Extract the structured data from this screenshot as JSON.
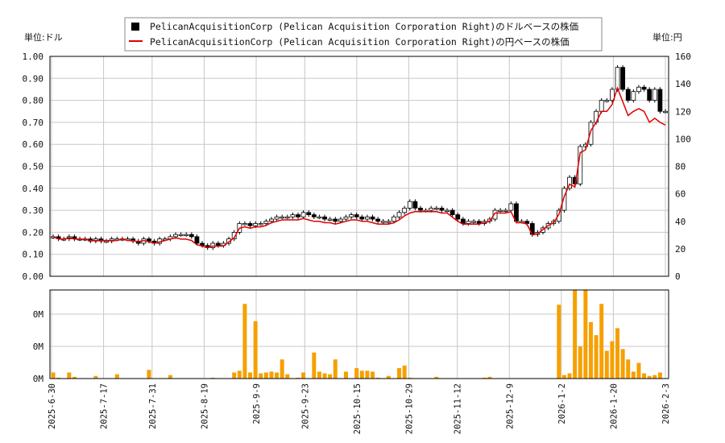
{
  "legend": {
    "dollar_label": "PelicanAcquisitionCorp (Pelican Acquisition Corporation Right)のドルベースの株価",
    "yen_label": "PelicanAcquisitionCorp (Pelican Acquisition Corporation Right)の円ベースの株価"
  },
  "units": {
    "left": "単位:ドル",
    "right": "単位:円"
  },
  "colors": {
    "candle": "#000000",
    "yen_line": "#e00000",
    "volume": "#f5a000",
    "grid": "#c8c8c8"
  },
  "chart_data": [
    {
      "type": "candlestick",
      "title": "",
      "ylabel_left": "単位:ドル",
      "ylabel_right": "単位:円",
      "ylim_left": [
        0,
        1.0
      ],
      "ylim_right": [
        0,
        160
      ],
      "left_ticks": [
        "0.00",
        "0.10",
        "0.20",
        "0.30",
        "0.40",
        "0.50",
        "0.60",
        "0.70",
        "0.80",
        "0.90",
        "1.00"
      ],
      "right_ticks": [
        "0",
        "20",
        "40",
        "60",
        "80",
        "100",
        "120",
        "140",
        "160"
      ],
      "x_ticks": [
        "2025-6-30",
        "2025-7-17",
        "2025-7-31",
        "2025-8-19",
        "2025-9-9",
        "2025-9-23",
        "2025-10-15",
        "2025-10-29",
        "2025-11-12",
        "2025-12-9",
        "2026-1-2",
        "2026-1-20",
        "2026-2-3"
      ],
      "grid": true,
      "legend_position": "top-center",
      "dollar_series": {
        "name": "PelicanAcquisitionCorp (Pelican Acquisition Corporation Right)のドルベースの株価",
        "close": [
          0.18,
          0.17,
          0.17,
          0.18,
          0.17,
          0.17,
          0.17,
          0.16,
          0.17,
          0.16,
          0.16,
          0.17,
          0.17,
          0.17,
          0.17,
          0.16,
          0.15,
          0.17,
          0.16,
          0.15,
          0.17,
          0.17,
          0.18,
          0.19,
          0.19,
          0.19,
          0.18,
          0.15,
          0.14,
          0.13,
          0.15,
          0.14,
          0.15,
          0.17,
          0.2,
          0.24,
          0.24,
          0.23,
          0.24,
          0.24,
          0.25,
          0.26,
          0.27,
          0.27,
          0.27,
          0.28,
          0.27,
          0.29,
          0.28,
          0.27,
          0.27,
          0.26,
          0.26,
          0.25,
          0.26,
          0.27,
          0.28,
          0.27,
          0.26,
          0.27,
          0.26,
          0.25,
          0.25,
          0.25,
          0.27,
          0.29,
          0.31,
          0.34,
          0.31,
          0.3,
          0.3,
          0.31,
          0.31,
          0.3,
          0.3,
          0.28,
          0.26,
          0.24,
          0.25,
          0.25,
          0.24,
          0.25,
          0.26,
          0.3,
          0.3,
          0.3,
          0.33,
          0.25,
          0.25,
          0.24,
          0.19,
          0.2,
          0.22,
          0.24,
          0.25,
          0.3,
          0.4,
          0.45,
          0.42,
          0.59,
          0.6,
          0.7,
          0.75,
          0.8,
          0.8,
          0.85,
          0.95,
          0.85,
          0.8,
          0.84,
          0.86,
          0.85,
          0.8,
          0.85,
          0.75,
          0.75
        ],
        "open": [
          0.18,
          0.18,
          0.17,
          0.17,
          0.18,
          0.17,
          0.17,
          0.17,
          0.16,
          0.17,
          0.16,
          0.16,
          0.17,
          0.17,
          0.17,
          0.17,
          0.16,
          0.15,
          0.17,
          0.16,
          0.15,
          0.17,
          0.17,
          0.18,
          0.19,
          0.19,
          0.19,
          0.18,
          0.15,
          0.14,
          0.13,
          0.15,
          0.14,
          0.15,
          0.17,
          0.2,
          0.24,
          0.24,
          0.23,
          0.24,
          0.24,
          0.25,
          0.26,
          0.27,
          0.27,
          0.27,
          0.28,
          0.27,
          0.29,
          0.28,
          0.27,
          0.27,
          0.26,
          0.26,
          0.25,
          0.26,
          0.27,
          0.28,
          0.27,
          0.26,
          0.27,
          0.26,
          0.25,
          0.25,
          0.25,
          0.27,
          0.29,
          0.31,
          0.34,
          0.31,
          0.3,
          0.3,
          0.31,
          0.31,
          0.3,
          0.3,
          0.28,
          0.26,
          0.24,
          0.25,
          0.25,
          0.24,
          0.25,
          0.26,
          0.3,
          0.3,
          0.3,
          0.33,
          0.25,
          0.25,
          0.24,
          0.19,
          0.2,
          0.22,
          0.24,
          0.25,
          0.3,
          0.4,
          0.45,
          0.42,
          0.59,
          0.6,
          0.7,
          0.75,
          0.8,
          0.8,
          0.85,
          0.95,
          0.85,
          0.8,
          0.84,
          0.86,
          0.85,
          0.8,
          0.85,
          0.75
        ]
      },
      "yen_series": {
        "name": "PelicanAcquisitionCorp (Pelican Acquisition Corporation Right)の円ベースの株価",
        "values": [
          29,
          27,
          27,
          28,
          27,
          27,
          27,
          26,
          26,
          26,
          26,
          26,
          26,
          27,
          26,
          26,
          25,
          26,
          25,
          24,
          25,
          26,
          27,
          28,
          27,
          27,
          26,
          23,
          22,
          21,
          22,
          22,
          22,
          25,
          28,
          35,
          36,
          35,
          36,
          36,
          37,
          39,
          40,
          41,
          41,
          41,
          41,
          42,
          41,
          40,
          40,
          39,
          39,
          38,
          39,
          40,
          41,
          41,
          40,
          40,
          39,
          38,
          38,
          38,
          39,
          41,
          44,
          46,
          47,
          47,
          47,
          47,
          47,
          46,
          46,
          43,
          40,
          38,
          38,
          38,
          38,
          39,
          40,
          46,
          46,
          46,
          47,
          39,
          39,
          38,
          30,
          31,
          34,
          37,
          39,
          45,
          58,
          67,
          65,
          90,
          92,
          106,
          112,
          120,
          120,
          125,
          137,
          127,
          117,
          120,
          122,
          120,
          112,
          115,
          112,
          110
        ]
      }
    },
    {
      "type": "bar",
      "title": "",
      "name": "volume",
      "y_ticks": [
        "0M",
        "0M",
        "0M"
      ],
      "values": [
        0.7,
        0.1,
        0.0,
        0.7,
        0.2,
        0.0,
        0.0,
        0.0,
        0.3,
        0.0,
        0.0,
        0.0,
        0.5,
        0.0,
        0.0,
        0.0,
        0.0,
        0.0,
        1.0,
        0.0,
        0.0,
        0.0,
        0.4,
        0.0,
        0.0,
        0.0,
        0.0,
        0.0,
        0.0,
        0.0,
        0.1,
        0.0,
        0.0,
        0.0,
        0.7,
        0.9,
        8.6,
        0.7,
        6.6,
        0.6,
        0.7,
        0.8,
        0.7,
        2.2,
        0.5,
        0.0,
        0.1,
        0.7,
        0.0,
        3.0,
        0.8,
        0.6,
        0.5,
        2.2,
        0.0,
        0.8,
        0.0,
        1.2,
        0.9,
        0.9,
        0.8,
        0.1,
        0.0,
        0.3,
        0.0,
        1.2,
        1.5,
        0.1,
        0.0,
        0.0,
        0.0,
        0.0,
        0.2,
        0.0,
        0.0,
        0.0,
        0.0,
        0.0,
        0.0,
        0.0,
        0.0,
        0.1,
        0.2,
        0.0,
        0.0,
        0.0,
        0.0,
        0.0,
        0.0,
        0.0,
        0.0,
        0.0,
        0.0,
        0.0,
        0.0,
        8.5,
        0.4,
        0.6,
        10.2,
        3.7,
        10.2,
        6.5,
        5.0,
        8.6,
        3.2,
        4.3,
        5.8,
        3.4,
        2.2,
        0.8,
        1.8,
        0.6,
        0.3,
        0.4,
        0.7
      ]
    }
  ]
}
